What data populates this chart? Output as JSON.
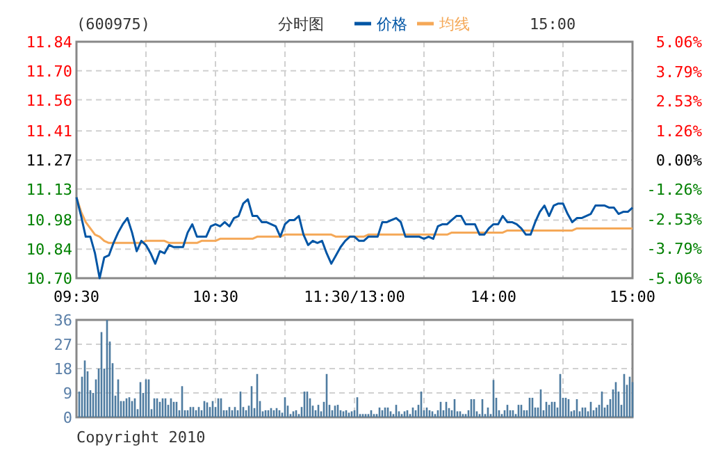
{
  "chart_data": [
    {
      "type": "line",
      "title": "(600975)",
      "subtitle": "分时图",
      "annotations": [
        "15:00"
      ],
      "legend": "top",
      "grid": true,
      "categories": [
        "09:30",
        null,
        null,
        null,
        null,
        null,
        null,
        null,
        null,
        null,
        null,
        null,
        null,
        null,
        null,
        null,
        null,
        null,
        null,
        null,
        null,
        null,
        null,
        null,
        null,
        null,
        null,
        null,
        null,
        null,
        "10:30",
        null,
        null,
        null,
        null,
        null,
        null,
        null,
        null,
        null,
        null,
        null,
        null,
        null,
        null,
        null,
        null,
        null,
        null,
        null,
        null,
        null,
        null,
        null,
        null,
        null,
        null,
        null,
        null,
        null,
        "11:30/13:00",
        null,
        null,
        null,
        null,
        null,
        null,
        null,
        null,
        null,
        null,
        null,
        null,
        null,
        null,
        null,
        null,
        null,
        null,
        null,
        null,
        null,
        null,
        null,
        null,
        null,
        null,
        null,
        null,
        null,
        "14:00",
        null,
        null,
        null,
        null,
        null,
        null,
        null,
        null,
        null,
        null,
        null,
        null,
        null,
        null,
        null,
        null,
        null,
        null,
        null,
        null,
        null,
        null,
        null,
        null,
        null,
        null,
        null,
        null,
        null,
        "15:00"
      ],
      "ylim": [
        10.7,
        11.84
      ],
      "yticks": [
        {
          "value": 10.7,
          "label": "10.70"
        },
        10.84,
        10.98,
        11.13,
        11.27,
        11.41,
        11.56,
        {
          "value": 11.7,
          "label": "11.70"
        },
        11.84
      ],
      "y2lim": [
        -5.06,
        5.06
      ],
      "y2ticks": [
        {
          "value": -5.06,
          "label": "-5.06%"
        },
        {
          "value": -3.79,
          "label": "-3.79%"
        },
        {
          "value": -2.53,
          "label": "-2.53%"
        },
        {
          "value": -1.26,
          "label": "-1.26%"
        },
        {
          "value": 0,
          "label": "0.00%"
        },
        {
          "value": 1.26,
          "label": "1.26%"
        },
        {
          "value": 2.53,
          "label": "2.53%"
        },
        {
          "value": 3.79,
          "label": "3.79%"
        },
        {
          "value": 5.06,
          "label": "5.06%"
        }
      ],
      "series": [
        {
          "name": "价格",
          "color": "#0055a5",
          "values": [
            11.09,
            11.0,
            10.9,
            10.9,
            10.82,
            10.7,
            10.8,
            10.81,
            10.87,
            10.92,
            10.96,
            10.99,
            10.92,
            10.83,
            10.88,
            10.86,
            10.82,
            10.77,
            10.83,
            10.82,
            10.86,
            10.85,
            10.85,
            10.85,
            10.92,
            10.96,
            10.9,
            10.9,
            10.9,
            10.95,
            10.96,
            10.95,
            10.97,
            10.95,
            10.99,
            11.0,
            11.06,
            11.08,
            11.0,
            11.0,
            10.97,
            10.97,
            10.96,
            10.95,
            10.9,
            10.96,
            10.98,
            10.98,
            11.0,
            10.91,
            10.86,
            10.88,
            10.87,
            10.88,
            10.82,
            10.77,
            10.81,
            10.85,
            10.88,
            10.9,
            10.9,
            10.88,
            10.88,
            10.9,
            10.9,
            10.9,
            10.97,
            10.97,
            10.98,
            10.99,
            10.97,
            10.9,
            10.9,
            10.9,
            10.9,
            10.89,
            10.9,
            10.89,
            10.95,
            10.96,
            10.96,
            10.98,
            11.0,
            11.0,
            10.96,
            10.96,
            10.96,
            10.91,
            10.91,
            10.94,
            10.96,
            10.96,
            11.0,
            10.97,
            10.97,
            10.96,
            10.94,
            10.91,
            10.91,
            10.97,
            11.02,
            11.05,
            11.0,
            11.05,
            11.06,
            11.06,
            11.01,
            10.97,
            10.99,
            10.99,
            11.0,
            11.01,
            11.05,
            11.05,
            11.05,
            11.04,
            11.04,
            11.01,
            11.02,
            11.02,
            11.04
          ]
        },
        {
          "name": "均线",
          "color": "#f5a857",
          "values": [
            11.09,
            11.02,
            10.97,
            10.94,
            10.91,
            10.9,
            10.88,
            10.87,
            10.87,
            10.87,
            10.87,
            10.87,
            10.87,
            10.87,
            10.87,
            10.88,
            10.88,
            10.88,
            10.88,
            10.88,
            10.87,
            10.87,
            10.87,
            10.87,
            10.87,
            10.87,
            10.87,
            10.88,
            10.88,
            10.88,
            10.88,
            10.89,
            10.89,
            10.89,
            10.89,
            10.89,
            10.89,
            10.89,
            10.89,
            10.9,
            10.9,
            10.9,
            10.9,
            10.9,
            10.9,
            10.91,
            10.91,
            10.91,
            10.91,
            10.91,
            10.91,
            10.91,
            10.91,
            10.91,
            10.91,
            10.91,
            10.9,
            10.9,
            10.9,
            10.9,
            10.9,
            10.9,
            10.9,
            10.91,
            10.91,
            10.91,
            10.91,
            10.91,
            10.91,
            10.91,
            10.91,
            10.91,
            10.91,
            10.91,
            10.91,
            10.91,
            10.91,
            10.91,
            10.91,
            10.91,
            10.91,
            10.92,
            10.92,
            10.92,
            10.92,
            10.92,
            10.92,
            10.92,
            10.92,
            10.92,
            10.92,
            10.92,
            10.92,
            10.93,
            10.93,
            10.93,
            10.93,
            10.93,
            10.93,
            10.93,
            10.93,
            10.93,
            10.93,
            10.93,
            10.93,
            10.93,
            10.93,
            10.93,
            10.94,
            10.94,
            10.94,
            10.94,
            10.94,
            10.94,
            10.94,
            10.94,
            10.94,
            10.94,
            10.94,
            10.94,
            10.94
          ]
        }
      ]
    },
    {
      "type": "bar",
      "color": "#4e7ba0",
      "grid": true,
      "annotations": [
        "Copyright 2010"
      ],
      "categories": [
        null,
        null,
        null,
        null,
        null,
        null,
        null,
        null,
        null,
        null,
        null,
        null,
        null,
        null,
        null,
        null,
        null,
        null,
        null,
        null,
        null,
        null,
        null,
        null,
        null,
        null,
        null,
        null,
        null,
        null,
        null,
        null,
        null,
        null,
        null,
        null,
        null,
        null,
        null,
        null,
        null,
        null,
        null,
        null,
        null,
        null,
        null,
        null,
        null,
        null,
        null,
        null,
        null,
        null,
        null,
        null,
        null,
        null,
        null,
        null,
        null,
        null,
        null,
        null,
        null,
        null,
        null,
        null,
        null,
        null,
        null,
        null,
        null,
        null,
        null,
        null,
        null,
        null,
        null,
        null,
        null,
        null,
        null,
        null,
        null,
        null,
        null,
        null,
        null,
        null,
        null,
        null,
        null,
        null,
        null,
        null,
        null,
        null,
        null,
        null,
        null,
        null,
        null,
        null,
        null,
        null,
        null,
        null,
        null,
        null,
        null,
        null,
        null,
        null,
        null,
        null,
        null,
        null,
        null,
        null,
        null,
        null,
        null,
        null,
        null,
        null,
        null,
        null,
        null,
        null,
        null,
        null,
        null,
        null,
        null,
        null,
        null,
        null,
        null,
        null,
        null,
        null,
        null,
        null,
        null,
        null,
        null,
        null,
        null,
        null,
        null,
        null,
        null,
        null,
        null,
        null,
        null,
        null,
        null,
        null,
        null,
        null,
        null,
        null,
        null,
        null,
        null,
        null,
        null,
        null,
        null,
        null,
        null,
        null,
        null,
        null,
        null,
        null,
        null,
        null,
        null,
        null,
        null,
        null,
        null,
        null,
        null,
        null,
        null,
        null,
        null,
        null,
        null,
        null,
        null,
        null,
        null,
        null,
        null,
        null,
        null
      ],
      "ylim": [
        0,
        36
      ],
      "yticks": [
        0,
        9,
        18,
        27,
        36
      ],
      "values": [
        null,
        9.5,
        15,
        21,
        17,
        10,
        9,
        14,
        18,
        31.5,
        18,
        36,
        28,
        20,
        8,
        14,
        6,
        6,
        7,
        7.4,
        6,
        7,
        3,
        13,
        9,
        14,
        14,
        3,
        7,
        7,
        5.7,
        7,
        7,
        4.6,
        7,
        5.7,
        5.7,
        2.6,
        11.5,
        2.6,
        2.6,
        3.8,
        3.8,
        2.6,
        3.8,
        2.6,
        6,
        5.5,
        3.8,
        6,
        3.8,
        7,
        7,
        2.6,
        2.6,
        3.8,
        2.6,
        3.8,
        2.6,
        9.5,
        3.8,
        2.6,
        4.3,
        11.5,
        3.4,
        16,
        6,
        2.2,
        2.6,
        2.6,
        3.4,
        2.6,
        3.4,
        2.6,
        1.7,
        7.4,
        4.3,
        1.2,
        2.2,
        2.6,
        1.2,
        3.8,
        9.5,
        9.5,
        7,
        4.3,
        2.6,
        4.6,
        2.2,
        5.7,
        16,
        4.6,
        2.6,
        4.3,
        4.6,
        2.6,
        2.2,
        2.6,
        1.7,
        2.2,
        2.6,
        7.4,
        1.2,
        1.2,
        1.2,
        1.2,
        2.6,
        1.2,
        1.2,
        3.6,
        2.6,
        3.6,
        3.6,
        2.2,
        1.2,
        4.6,
        2.2,
        1.2,
        2.2,
        2.6,
        1.2,
        3.6,
        2.6,
        4.6,
        9.5,
        2.6,
        3.6,
        2.6,
        2.2,
        1.2,
        2.6,
        5.7,
        2.6,
        5.7,
        3.4,
        2.6,
        6.7,
        2.2,
        2.2,
        1.2,
        1.2,
        2.6,
        6.7,
        6.7,
        2.2,
        1.2,
        6.7,
        1.2,
        3.6,
        1.2,
        13.8,
        7.2,
        2.6,
        1.2,
        2.6,
        4.6,
        2.6,
        2.6,
        1.2,
        4.6,
        4.6,
        2.6,
        2.6,
        7.2,
        7.2,
        3.6,
        3.6,
        10.3,
        2.6,
        5.7,
        4.6,
        5.7,
        5.7,
        3.6,
        16,
        7.2,
        7.2,
        6.7,
        2.2,
        2.6,
        6.7,
        2.2,
        3.6,
        3.6,
        2.2,
        5.7,
        2.6,
        3.6,
        4.6,
        9.5,
        3.6,
        4.6,
        6.7,
        10.3,
        13,
        9.5,
        4.6,
        16,
        12,
        15,
        13
      ]
    }
  ]
}
